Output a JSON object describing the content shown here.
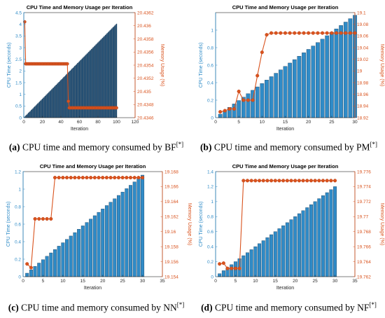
{
  "colors": {
    "bar": "#2f8bc7",
    "bar_dark": "#1f4f77",
    "line": "#d9531e",
    "axis": "#262626",
    "grid": "#e6e6e6"
  },
  "captions": [
    {
      "letter": "(a)",
      "text": " CPU time and memory consumed by BF",
      "sup": "[*]"
    },
    {
      "letter": "(b)",
      "text": " CPU time and memory consumed by PM",
      "sup": "[*]"
    },
    {
      "letter": "(c)",
      "text": " CPU time and memory consumed by NN",
      "sup": "[*]"
    },
    {
      "letter": "(d)",
      "text": " CPU time and memory consumed by NF",
      "sup": "[*]"
    }
  ],
  "chart_data": [
    {
      "type": "bar",
      "title": "CPU Time and Memory Usage per Iteration",
      "xlabel": "Iteration",
      "ylabel": "CPU Time (seconds)",
      "y2label": "Memory Usage (%)",
      "xlim": [
        0,
        120
      ],
      "xticks": [
        0,
        20,
        40,
        60,
        80,
        100,
        120
      ],
      "ylim": [
        0,
        4.5
      ],
      "yticks": [
        0,
        0.5,
        1,
        1.5,
        2,
        2.5,
        3,
        3.5,
        4,
        4.5
      ],
      "y2lim": [
        20.4346,
        20.4362
      ],
      "y2ticks": [
        20.4346,
        20.4348,
        20.435,
        20.4352,
        20.4354,
        20.4356,
        20.4358,
        20.436,
        20.4362
      ],
      "ytick_labels": [
        "0",
        "0.5",
        "1",
        "1.5",
        "2",
        "2.5",
        "3",
        "3.5",
        "4",
        "4.5"
      ],
      "y2tick_labels": [
        "20.4346",
        "20.4348",
        "20.435",
        "20.4352",
        "20.4354",
        "20.4356",
        "20.4358",
        "20.436",
        "20.4362"
      ],
      "cpu": {
        "n": 100,
        "start": 0.04,
        "end": 4.02
      },
      "memory_segments": [
        {
          "from": 1,
          "to": 1,
          "value": 20.43606
        },
        {
          "from": 2,
          "to": 47,
          "value": 20.43542
        },
        {
          "from": 48,
          "to": 48,
          "value": 20.43485
        },
        {
          "from": 49,
          "to": 100,
          "value": 20.43475
        }
      ]
    },
    {
      "type": "bar",
      "title": "CPU Time and Memory Usage per Iteration",
      "xlabel": "Iteration",
      "ylabel": "CPU Time (seconds)",
      "y2label": "Memory Usage (%)",
      "xlim": [
        0,
        30
      ],
      "xticks": [
        0,
        5,
        10,
        15,
        20,
        25,
        30
      ],
      "ylim": [
        0,
        1.2
      ],
      "yticks": [
        0,
        0.2,
        0.4,
        0.6,
        0.8,
        1
      ],
      "y2lim": [
        18.92,
        19.1
      ],
      "y2ticks": [
        18.92,
        18.94,
        18.96,
        18.98,
        19,
        19.02,
        19.04,
        19.06,
        19.08,
        19.1
      ],
      "ytick_labels": [
        "0",
        "0.2",
        "0.4",
        "0.6",
        "0.8",
        "1"
      ],
      "y2tick_labels": [
        "18.92",
        "18.94",
        "18.96",
        "18.98",
        "19",
        "19.02",
        "19.04",
        "19.06",
        "19.08",
        "19.1"
      ],
      "cpu": {
        "n": 30,
        "start": 0.04,
        "end": 1.17
      },
      "memory": [
        18.93,
        18.932,
        18.935,
        18.935,
        18.965,
        18.95,
        18.95,
        18.95,
        18.992,
        19.032,
        19.062,
        19.065,
        19.065,
        19.065,
        19.065,
        19.065,
        19.065,
        19.065,
        19.065,
        19.065,
        19.065,
        19.065,
        19.065,
        19.065,
        19.065,
        19.065,
        19.065,
        19.065,
        19.065,
        19.065
      ]
    },
    {
      "type": "bar",
      "title": "CPU Time and Memory Usage per Iteration",
      "xlabel": "Iteration",
      "ylabel": "CPU Time (seconds)",
      "y2label": "Memory Usage (%)",
      "xlim": [
        0,
        35
      ],
      "xticks": [
        0,
        5,
        10,
        15,
        20,
        25,
        30,
        35
      ],
      "ylim": [
        0,
        1.2
      ],
      "yticks": [
        0,
        0.2,
        0.4,
        0.6,
        0.8,
        1,
        1.2
      ],
      "y2lim": [
        19.154,
        19.168
      ],
      "y2ticks": [
        19.154,
        19.156,
        19.158,
        19.16,
        19.162,
        19.164,
        19.166,
        19.168
      ],
      "ytick_labels": [
        "0",
        "0.2",
        "0.4",
        "0.6",
        "0.8",
        "1",
        "1.2"
      ],
      "y2tick_labels": [
        "19.154",
        "19.156",
        "19.158",
        "19.16",
        "19.162",
        "19.164",
        "19.166",
        "19.168"
      ],
      "cpu": {
        "n": 30,
        "start": 0.04,
        "end": 1.16
      },
      "memory": [
        19.1557,
        19.1552,
        19.1617,
        19.1617,
        19.1617,
        19.1617,
        19.1617,
        19.1672,
        19.1672,
        19.1672,
        19.1672,
        19.1672,
        19.1672,
        19.1672,
        19.1672,
        19.1672,
        19.1672,
        19.1672,
        19.1672,
        19.1672,
        19.1672,
        19.1672,
        19.1672,
        19.1672,
        19.1672,
        19.1672,
        19.1672,
        19.1672,
        19.1672,
        19.1672
      ]
    },
    {
      "type": "bar",
      "title": "CPU Time and Memory Usage per Iteration",
      "xlabel": "Iteration",
      "ylabel": "CPU Time (seconds)",
      "y2label": "Memory Usage (%)",
      "xlim": [
        0,
        35
      ],
      "xticks": [
        0,
        5,
        10,
        15,
        20,
        25,
        30,
        35
      ],
      "ylim": [
        0,
        1.4
      ],
      "yticks": [
        0,
        0.2,
        0.4,
        0.6,
        0.8,
        1,
        1.2,
        1.4
      ],
      "y2lim": [
        19.762,
        19.776
      ],
      "y2ticks": [
        19.762,
        19.764,
        19.766,
        19.768,
        19.77,
        19.772,
        19.774,
        19.776
      ],
      "ytick_labels": [
        "0",
        "0.2",
        "0.4",
        "0.6",
        "0.8",
        "1",
        "1.2",
        "1.4"
      ],
      "y2tick_labels": [
        "19.762",
        "19.764",
        "19.766",
        "19.768",
        "19.77",
        "19.772",
        "19.774",
        "19.776"
      ],
      "cpu": {
        "n": 30,
        "start": 0.04,
        "end": 1.2
      },
      "memory": [
        19.7637,
        19.7638,
        19.7631,
        19.7631,
        19.7631,
        19.7631,
        19.7748,
        19.7748,
        19.7748,
        19.7748,
        19.7748,
        19.7748,
        19.7748,
        19.7748,
        19.7748,
        19.7748,
        19.7748,
        19.7748,
        19.7748,
        19.7748,
        19.7748,
        19.7748,
        19.7748,
        19.7748,
        19.7748,
        19.7748,
        19.7748,
        19.7748,
        19.7748,
        19.7748
      ]
    }
  ]
}
